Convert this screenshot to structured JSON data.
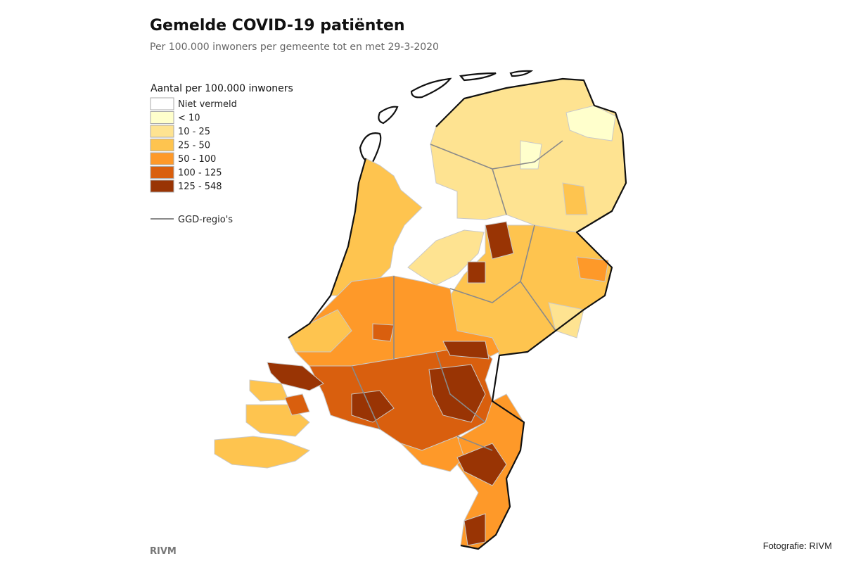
{
  "header": {
    "title": "Gemelde COVID-19 patiënten",
    "subtitle": "Per 100.000 inwoners per gemeente tot en met 29-3-2020"
  },
  "legend": {
    "title": "Aantal per 100.000 inwoners",
    "items": [
      {
        "label": "Niet vermeld",
        "color": "#ffffff"
      },
      {
        "label": "< 10",
        "color": "#ffffcc"
      },
      {
        "label": "10 - 25",
        "color": "#fee391"
      },
      {
        "label": "25 - 50",
        "color": "#fec44f"
      },
      {
        "label": "50 - 100",
        "color": "#fe9929"
      },
      {
        "label": "100 - 125",
        "color": "#d95f0e"
      },
      {
        "label": "125 - 548",
        "color": "#993404"
      }
    ],
    "line_label": "GGD-regio's"
  },
  "footer": {
    "source": "RIVM",
    "credit": "Fotografie: RIVM"
  }
}
